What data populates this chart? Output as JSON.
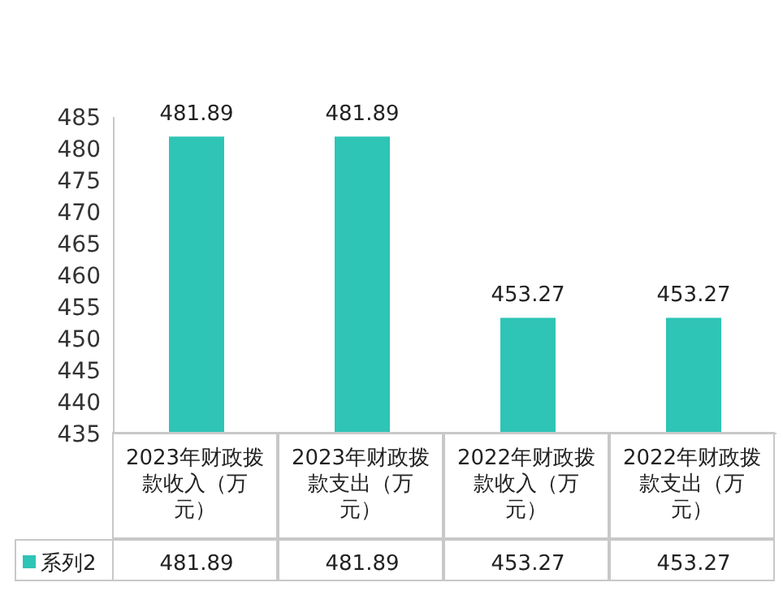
{
  "chart_data": {
    "type": "bar",
    "categories": [
      "2023年财政拨款收入（万元）",
      "2023年财政拨款支出（万元）",
      "2022年财政拨款收入（万元）",
      "2022年财政拨款支出（万元）"
    ],
    "series": [
      {
        "name": "系列2",
        "color": "#2ec4b6",
        "values": [
          481.89,
          481.89,
          453.27,
          453.27
        ],
        "value_labels": [
          "481.89",
          "481.89",
          "453.27",
          "453.27"
        ]
      }
    ],
    "ylim": [
      435,
      485
    ],
    "yticks": [
      435,
      440,
      445,
      450,
      455,
      460,
      465,
      470,
      475,
      480,
      485
    ],
    "annotations": [
      "481.89",
      "481.89",
      "453.27",
      "453.27"
    ],
    "legend": "bottom left"
  }
}
